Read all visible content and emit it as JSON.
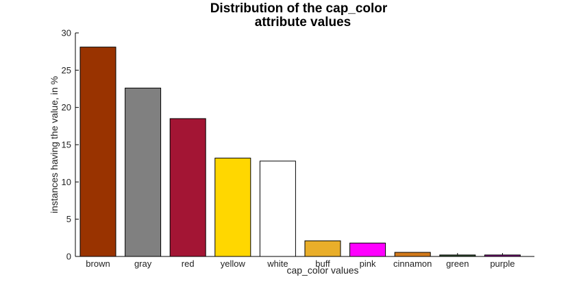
{
  "chart_data": {
    "type": "bar",
    "title_lines": [
      "Distribution of the cap_color",
      "attribute values"
    ],
    "xlabel": "cap_color values",
    "ylabel": "instances having the value, in %",
    "ylim": [
      0,
      30
    ],
    "yticks": [
      0,
      5,
      10,
      15,
      20,
      25,
      30
    ],
    "categories": [
      "brown",
      "gray",
      "red",
      "yellow",
      "white",
      "buff",
      "pink",
      "cinnamon",
      "green",
      "purple"
    ],
    "values": [
      28.1,
      22.6,
      18.5,
      13.2,
      12.8,
      2.1,
      1.8,
      0.55,
      0.2,
      0.2
    ],
    "colors": [
      "#993300",
      "#808080",
      "#a31534",
      "#ffd700",
      "#ffffff",
      "#e9ae2a",
      "#ff00ff",
      "#d2791a",
      "#2f4f2f",
      "#800080"
    ],
    "grid": false,
    "legend": "none"
  }
}
